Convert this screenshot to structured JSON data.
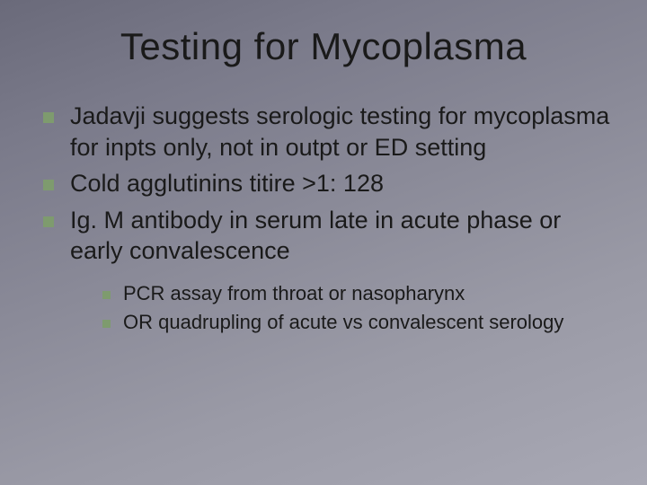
{
  "title": "Testing for Mycoplasma",
  "bullets": [
    {
      "text": "Jadavji suggests serologic testing for mycoplasma for inpts only, not in outpt or ED setting"
    },
    {
      "text": "Cold agglutinins titire >1: 128"
    },
    {
      "text": "Ig. M antibody in serum late in acute phase or early convalescence"
    }
  ],
  "sub_bullets": [
    {
      "text": "PCR assay from throat or nasopharynx"
    },
    {
      "text": "OR  quadrupling of acute vs convalescent serology"
    }
  ],
  "style": {
    "bullet_color": "#7e9b6e",
    "bg_gradient_from": "#6a6a7a",
    "bg_gradient_to": "#a8a8b4",
    "title_fontsize": 42,
    "bullet_fontsize": 27,
    "sub_bullet_fontsize": 22
  }
}
